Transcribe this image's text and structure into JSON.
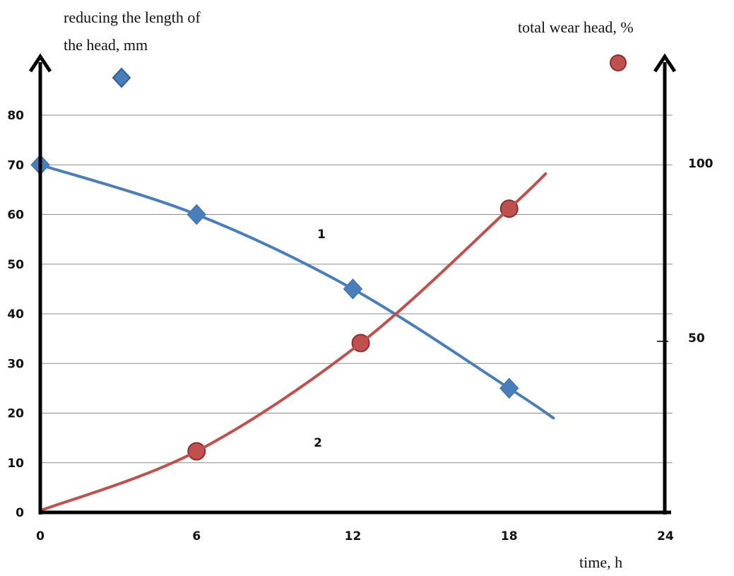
{
  "chart_data": {
    "type": "line",
    "x_label": "time, h",
    "y_left_label": [
      "reducing the length of",
      "the head, mm"
    ],
    "y_right_label": "total wear head, %",
    "x_ticks": [
      "0",
      "6",
      "12",
      "18",
      "24"
    ],
    "y_left_ticks": [
      "0",
      "10",
      "20",
      "30",
      "40",
      "50",
      "60",
      "70",
      "80"
    ],
    "y_right_ticks": [
      {
        "label": "50",
        "value": 50
      },
      {
        "label": "100",
        "value": 100
      }
    ],
    "xlim": [
      0,
      24
    ],
    "ylim_left": [
      0,
      80
    ],
    "ylim_right": [
      0,
      140
    ],
    "grid": true,
    "series": [
      {
        "label": "1",
        "axis": "left",
        "marker": "diamond",
        "color": "#4a7ebb",
        "points": [
          {
            "x": 0,
            "y": 70
          },
          {
            "x": 6,
            "y": 60
          },
          {
            "x": 12,
            "y": 45
          },
          {
            "x": 18,
            "y": 25
          }
        ],
        "curve_end": {
          "x": 19.7,
          "y": 19
        }
      },
      {
        "label": "2",
        "axis": "right",
        "marker": "circle",
        "color": "#c0504d",
        "points": [
          {
            "x": 0,
            "y": 0.5
          },
          {
            "x": 6,
            "y": 17.5
          },
          {
            "x": 12.3,
            "y": 48.5
          },
          {
            "x": 18,
            "y": 87
          }
        ],
        "curve_end": {
          "x": 19.4,
          "y": 97
        }
      }
    ]
  }
}
